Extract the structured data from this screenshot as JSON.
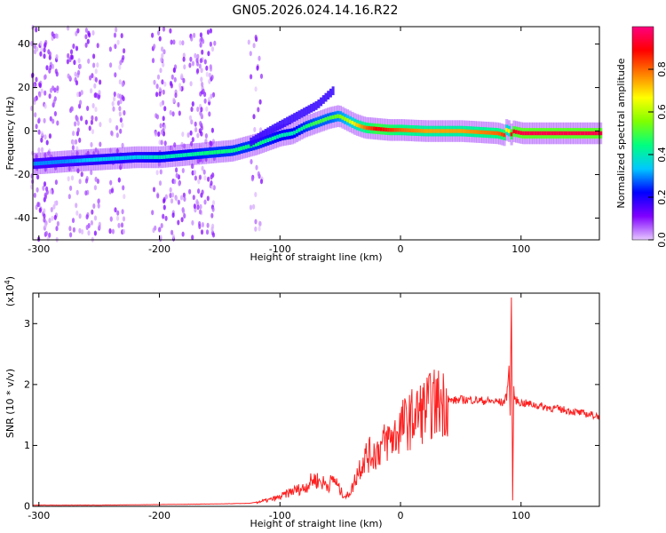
{
  "title": "GN05.2026.024.14.16.R22",
  "chart_data": [
    {
      "type": "heatmap",
      "title": "GN05.2026.024.14.16.R22",
      "xlabel": "Height of straight line (km)",
      "ylabel": "Frequency (Hz)",
      "xlim": [
        -305,
        165
      ],
      "ylim": [
        -50,
        48
      ],
      "x_ticks": [
        "-300",
        "-200",
        "-100",
        "0",
        "100"
      ],
      "y_ticks": [
        "40",
        "20",
        "0",
        "-20",
        "-40"
      ],
      "colorbar": {
        "label": "Normalized spectral amplitude",
        "range": [
          0,
          1
        ],
        "ticks": [
          "0.0",
          "0.2",
          "0.4",
          "0.6",
          "0.8"
        ],
        "colors": [
          "#e6c8ff",
          "#8000ff",
          "#0000ff",
          "#00c8ff",
          "#00ff80",
          "#80ff00",
          "#ffff00",
          "#ff8000",
          "#ff0000",
          "#ff0080"
        ]
      },
      "ridge": {
        "x": [
          -305,
          -280,
          -250,
          -220,
          -200,
          -180,
          -160,
          -140,
          -120,
          -100,
          -90,
          -80,
          -70,
          -60,
          -52,
          -45,
          -38,
          -30,
          -20,
          -10,
          0,
          20,
          50,
          80,
          86,
          88,
          90,
          92,
          100,
          130,
          165
        ],
        "frequency": [
          -15,
          -14,
          -13,
          -12,
          -12,
          -11,
          -10,
          -9,
          -6,
          -2,
          -1,
          2,
          4,
          6,
          7,
          5,
          3,
          1.5,
          1,
          0.5,
          0.5,
          0,
          0,
          -1,
          -2,
          3,
          -3,
          0,
          -1,
          -1,
          -1
        ],
        "amplitude": [
          0.3,
          0.3,
          0.35,
          0.35,
          0.4,
          0.4,
          0.45,
          0.45,
          0.45,
          0.4,
          0.4,
          0.45,
          0.5,
          0.5,
          0.55,
          0.6,
          0.7,
          0.8,
          0.9,
          0.85,
          0.8,
          0.75,
          0.75,
          0.8,
          0.85,
          0.5,
          0.85,
          0.9,
          0.95,
          0.95,
          0.95
        ]
      },
      "branch": {
        "x": [
          -125,
          -110,
          -100,
          -90,
          -80,
          -70,
          -62,
          -56
        ],
        "frequency": [
          -5,
          0,
          3,
          6,
          9,
          12,
          16,
          19
        ]
      },
      "noise_columns_x": [
        -300,
        -290,
        -270,
        -255,
        -235,
        -200,
        -185,
        -170,
        -160,
        -120
      ],
      "grid": false
    },
    {
      "type": "line",
      "xlabel": "Height of straight line (km)",
      "ylabel": "SNR (10 * v/v)",
      "y_multiplier": "(x10^4)",
      "xlim": [
        -305,
        165
      ],
      "ylim": [
        0,
        3.5
      ],
      "x_ticks": [
        "-300",
        "-200",
        "-100",
        "0",
        "100"
      ],
      "y_ticks": [
        "0",
        "1",
        "2",
        "3"
      ],
      "series": [
        {
          "color": "#ff2020",
          "x": [
            -305,
            -250,
            -200,
            -150,
            -125,
            -110,
            -100,
            -90,
            -80,
            -72,
            -66,
            -60,
            -55,
            -50,
            -45,
            -40,
            -35,
            -30,
            -25,
            -20,
            -15,
            -10,
            -5,
            0,
            10,
            20,
            30,
            40,
            50,
            60,
            70,
            80,
            85,
            88,
            90,
            91,
            92,
            93,
            94,
            95,
            100,
            110,
            120,
            130,
            140,
            150,
            165
          ],
          "y": [
            0.02,
            0.02,
            0.03,
            0.04,
            0.05,
            0.1,
            0.15,
            0.25,
            0.3,
            0.45,
            0.4,
            0.35,
            0.45,
            0.25,
            0.15,
            0.3,
            0.6,
            0.8,
            0.85,
            0.9,
            1.0,
            1.1,
            1.15,
            1.3,
            1.45,
            1.6,
            1.7,
            1.73,
            1.75,
            1.75,
            1.73,
            1.72,
            1.7,
            1.8,
            2.3,
            1.5,
            3.5,
            0.1,
            1.9,
            1.75,
            1.7,
            1.67,
            1.63,
            1.6,
            1.57,
            1.53,
            1.48
          ]
        }
      ],
      "grid": false
    }
  ]
}
